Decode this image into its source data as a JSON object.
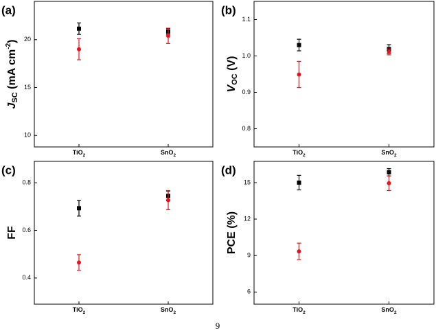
{
  "chart_data": [
    {
      "type": "errorbar",
      "panel_label": "(a)",
      "y_label": [
        {
          "text": "J",
          "italic": true
        },
        {
          "text": "SC",
          "sub": true
        },
        {
          "text": " (mA cm"
        },
        {
          "text": "-2",
          "sup": true
        },
        {
          "text": ")"
        }
      ],
      "categories": [
        "TiO2",
        "SnO2"
      ],
      "series": [
        {
          "color": "#000000",
          "marker": "square",
          "values": [
            21.15,
            20.85
          ],
          "errors": [
            0.6,
            0.3
          ]
        },
        {
          "color": "#e8141c",
          "marker": "circle",
          "values": [
            19.0,
            20.4
          ],
          "errors": [
            1.1,
            0.8
          ]
        }
      ],
      "ylim": [
        8.8,
        24
      ],
      "yticks": [
        10,
        15,
        20
      ]
    },
    {
      "type": "errorbar",
      "panel_label": "(b)",
      "y_label": [
        {
          "text": "V",
          "italic": true
        },
        {
          "text": "OC",
          "sub": true
        },
        {
          "text": " (V)"
        }
      ],
      "categories": [
        "TiO2",
        "SnO2"
      ],
      "series": [
        {
          "color": "#000000",
          "marker": "square",
          "values": [
            1.03,
            1.019
          ],
          "errors": [
            0.016,
            0.012
          ]
        },
        {
          "color": "#e8141c",
          "marker": "circle",
          "values": [
            0.949,
            1.011
          ],
          "errors": [
            0.036,
            0.008
          ]
        }
      ],
      "ylim": [
        0.75,
        1.15
      ],
      "yticks": [
        0.8,
        0.9,
        {
          "value": 1.0,
          "label": "1.0"
        },
        1.1
      ]
    },
    {
      "type": "errorbar",
      "panel_label": "(c)",
      "y_label": [
        {
          "text": "FF"
        }
      ],
      "categories": [
        "TiO2",
        "SnO2"
      ],
      "series": [
        {
          "color": "#000000",
          "marker": "square",
          "values": [
            0.693,
            0.745
          ],
          "errors": [
            0.033,
            0.02
          ]
        },
        {
          "color": "#e8141c",
          "marker": "circle",
          "values": [
            0.465,
            0.727
          ],
          "errors": [
            0.033,
            0.04
          ]
        }
      ],
      "ylim": [
        0.29,
        0.89
      ],
      "yticks": [
        0.4,
        0.6,
        0.8
      ]
    },
    {
      "type": "errorbar",
      "panel_label": "(d)",
      "y_label": [
        {
          "text": "PCE (%)"
        }
      ],
      "categories": [
        "TiO2",
        "SnO2"
      ],
      "series": [
        {
          "color": "#000000",
          "marker": "square",
          "values": [
            15.0,
            15.85
          ],
          "errors": [
            0.6,
            0.3
          ]
        },
        {
          "color": "#e8141c",
          "marker": "circle",
          "values": [
            9.34,
            14.95
          ],
          "errors": [
            0.68,
            0.6
          ]
        }
      ],
      "ylim": [
        5,
        16.75
      ],
      "yticks": [
        6,
        9,
        12,
        15
      ]
    }
  ],
  "page_number": 9
}
